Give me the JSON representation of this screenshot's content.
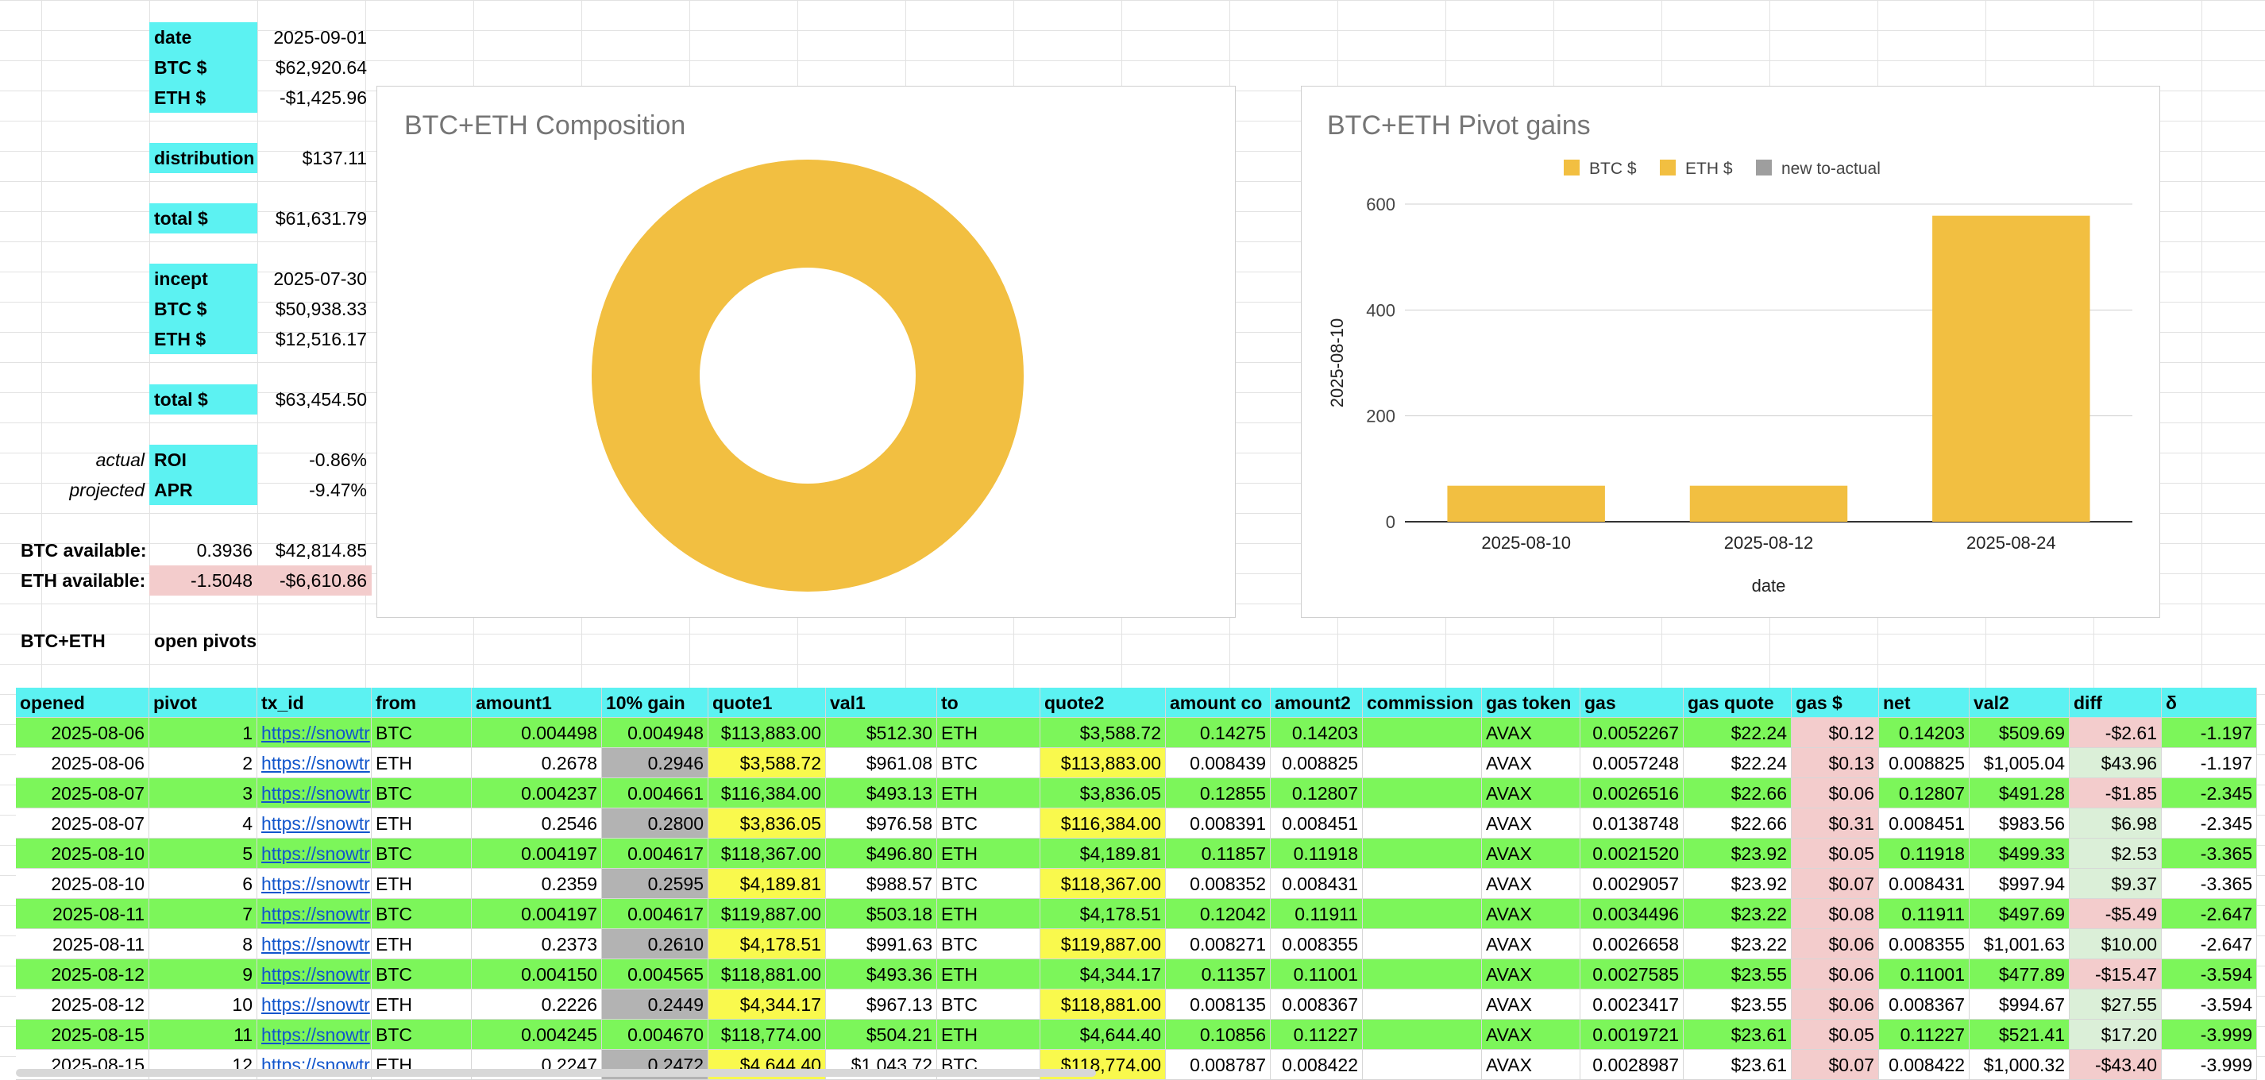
{
  "summary": {
    "date_label": "date",
    "date_value": "2025-09-01",
    "btc_label": "BTC $",
    "btc_value": "$62,920.64",
    "eth_label": "ETH $",
    "eth_value": "-$1,425.96",
    "distribution_label": "distribution",
    "distribution_value": "$137.11",
    "total_label": "total $",
    "total_value": "$61,631.79",
    "incept_label": "incept",
    "incept_value": "2025-07-30",
    "incept_btc_label": "BTC $",
    "incept_btc_value": "$50,938.33",
    "incept_eth_label": "ETH $",
    "incept_eth_value": "$12,516.17",
    "incept_total_label": "total $",
    "incept_total_value": "$63,454.50",
    "actual_label": "actual",
    "roi_label": "ROI",
    "roi_value": "-0.86%",
    "projected_label": "projected",
    "apr_label": "APR",
    "apr_value": "-9.47%",
    "btc_available_label": "BTC available:",
    "btc_available_qty": "0.3936",
    "btc_available_value": "$42,814.85",
    "eth_available_label": "ETH available:",
    "eth_available_qty": "-1.5048",
    "eth_available_value": "-$6,610.86",
    "section_label": "BTC+ETH",
    "section_title": "open pivots"
  },
  "chart_data": [
    {
      "type": "pie",
      "title": "BTC+ETH Composition",
      "donut": true,
      "slices": [
        {
          "name": "",
          "value": 100,
          "color": "#f2bf41"
        }
      ]
    },
    {
      "type": "bar",
      "title": "BTC+ETH Pivot gains",
      "categories": [
        "2025-08-10",
        "2025-08-12",
        "2025-08-24"
      ],
      "series": [
        {
          "name": "BTC $",
          "values": [
            68,
            68,
            578
          ],
          "color": "#f2bf41"
        },
        {
          "name": "ETH $",
          "values": [
            0,
            0,
            0
          ],
          "color": "#f2bf41"
        },
        {
          "name": "new to-actual",
          "values": [
            0,
            0,
            0
          ],
          "color": "#9e9e9e"
        }
      ],
      "xlabel": "date",
      "ylabel": "2025-08-10",
      "ylim": [
        0,
        600
      ],
      "yticks": [
        "0",
        "200",
        "400",
        "600"
      ],
      "legend": "top",
      "grid": true
    }
  ],
  "table": {
    "headers": [
      "opened",
      "pivot",
      "tx_id",
      "from",
      "amount1",
      "10% gain",
      "quote1",
      "val1",
      "to",
      "quote2",
      "amount co",
      "amount2",
      "commission",
      "gas token",
      "gas",
      "gas quote",
      "gas $",
      "net",
      "val2",
      "diff",
      "δ"
    ],
    "rows": [
      [
        "2025-08-06",
        "1",
        "https://snowtr",
        "BTC",
        "0.004498",
        "0.004948",
        "$113,883.00",
        "$512.30",
        "ETH",
        "$3,588.72",
        "0.14275",
        "0.14203",
        "",
        "AVAX",
        "0.0052267",
        "$22.24",
        "$0.12",
        "0.14203",
        "$509.69",
        "-$2.61",
        "-1.197"
      ],
      [
        "2025-08-06",
        "2",
        "https://snowtr",
        "ETH",
        "0.2678",
        "0.2946",
        "$3,588.72",
        "$961.08",
        "BTC",
        "$113,883.00",
        "0.008439",
        "0.008825",
        "",
        "AVAX",
        "0.0057248",
        "$22.24",
        "$0.13",
        "0.008825",
        "$1,005.04",
        "$43.96",
        "-1.197"
      ],
      [
        "2025-08-07",
        "3",
        "https://snowtr",
        "BTC",
        "0.004237",
        "0.004661",
        "$116,384.00",
        "$493.13",
        "ETH",
        "$3,836.05",
        "0.12855",
        "0.12807",
        "",
        "AVAX",
        "0.0026516",
        "$22.66",
        "$0.06",
        "0.12807",
        "$491.28",
        "-$1.85",
        "-2.345"
      ],
      [
        "2025-08-07",
        "4",
        "https://snowtr",
        "ETH",
        "0.2546",
        "0.2800",
        "$3,836.05",
        "$976.58",
        "BTC",
        "$116,384.00",
        "0.008391",
        "0.008451",
        "",
        "AVAX",
        "0.0138748",
        "$22.66",
        "$0.31",
        "0.008451",
        "$983.56",
        "$6.98",
        "-2.345"
      ],
      [
        "2025-08-10",
        "5",
        "https://snowtr",
        "BTC",
        "0.004197",
        "0.004617",
        "$118,367.00",
        "$496.80",
        "ETH",
        "$4,189.81",
        "0.11857",
        "0.11918",
        "",
        "AVAX",
        "0.0021520",
        "$23.92",
        "$0.05",
        "0.11918",
        "$499.33",
        "$2.53",
        "-3.365"
      ],
      [
        "2025-08-10",
        "6",
        "https://snowtr",
        "ETH",
        "0.2359",
        "0.2595",
        "$4,189.81",
        "$988.57",
        "BTC",
        "$118,367.00",
        "0.008352",
        "0.008431",
        "",
        "AVAX",
        "0.0029057",
        "$23.92",
        "$0.07",
        "0.008431",
        "$997.94",
        "$9.37",
        "-3.365"
      ],
      [
        "2025-08-11",
        "7",
        "https://snowtr",
        "BTC",
        "0.004197",
        "0.004617",
        "$119,887.00",
        "$503.18",
        "ETH",
        "$4,178.51",
        "0.12042",
        "0.11911",
        "",
        "AVAX",
        "0.0034496",
        "$23.22",
        "$0.08",
        "0.11911",
        "$497.69",
        "-$5.49",
        "-2.647"
      ],
      [
        "2025-08-11",
        "8",
        "https://snowtr",
        "ETH",
        "0.2373",
        "0.2610",
        "$4,178.51",
        "$991.63",
        "BTC",
        "$119,887.00",
        "0.008271",
        "0.008355",
        "",
        "AVAX",
        "0.0026658",
        "$23.22",
        "$0.06",
        "0.008355",
        "$1,001.63",
        "$10.00",
        "-2.647"
      ],
      [
        "2025-08-12",
        "9",
        "https://snowtr",
        "BTC",
        "0.004150",
        "0.004565",
        "$118,881.00",
        "$493.36",
        "ETH",
        "$4,344.17",
        "0.11357",
        "0.11001",
        "",
        "AVAX",
        "0.0027585",
        "$23.55",
        "$0.06",
        "0.11001",
        "$477.89",
        "-$15.47",
        "-3.594"
      ],
      [
        "2025-08-12",
        "10",
        "https://snowtr",
        "ETH",
        "0.2226",
        "0.2449",
        "$4,344.17",
        "$967.13",
        "BTC",
        "$118,881.00",
        "0.008135",
        "0.008367",
        "",
        "AVAX",
        "0.0023417",
        "$23.55",
        "$0.06",
        "0.008367",
        "$994.67",
        "$27.55",
        "-3.594"
      ],
      [
        "2025-08-15",
        "11",
        "https://snowtr",
        "BTC",
        "0.004245",
        "0.004670",
        "$118,774.00",
        "$504.21",
        "ETH",
        "$4,644.40",
        "0.10856",
        "0.11227",
        "",
        "AVAX",
        "0.0019721",
        "$23.61",
        "$0.05",
        "0.11227",
        "$521.41",
        "$17.20",
        "-3.999"
      ],
      [
        "2025-08-15",
        "12",
        "https://snowtr",
        "ETH",
        "0.2247",
        "0.2472",
        "$4,644.40",
        "$1,043.72",
        "BTC",
        "$118,774.00",
        "0.008787",
        "0.008422",
        "",
        "AVAX",
        "0.0028987",
        "$23.61",
        "$0.07",
        "0.008422",
        "$1,000.32",
        "-$43.40",
        "-3.999"
      ]
    ]
  }
}
